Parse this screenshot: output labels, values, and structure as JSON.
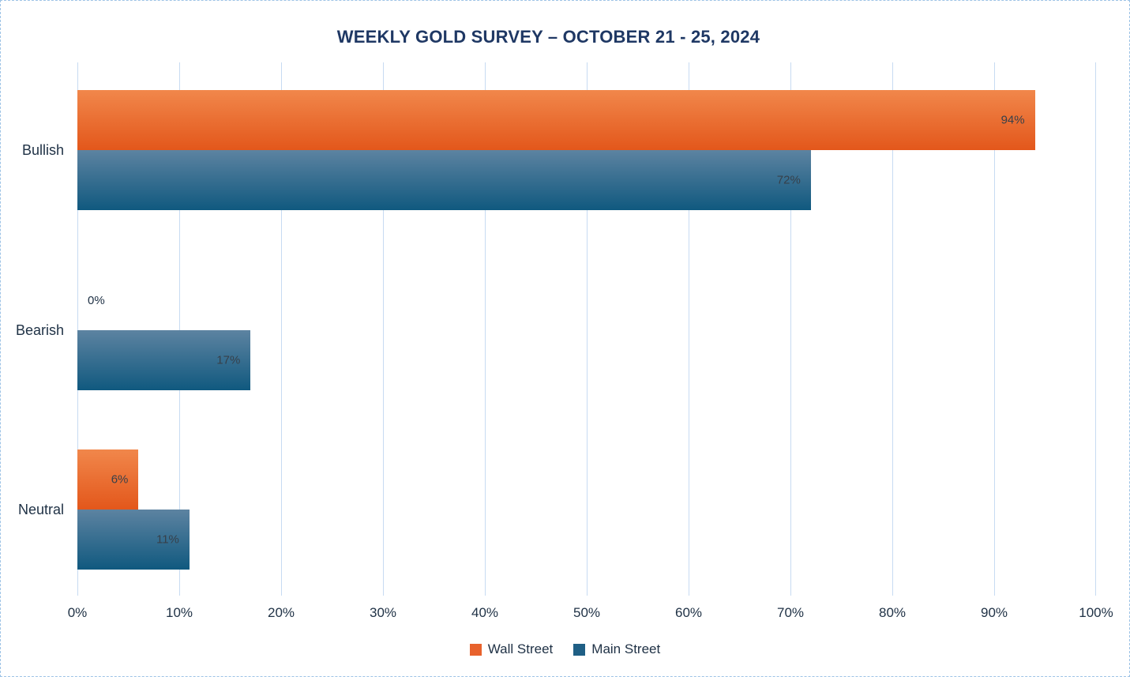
{
  "chart_data": {
    "type": "bar",
    "orientation": "horizontal",
    "title": "WEEKLY GOLD SURVEY – OCTOBER 21 - 25, 2024",
    "categories": [
      "Bullish",
      "Bearish",
      "Neutral"
    ],
    "series": [
      {
        "name": "Wall Street",
        "values": [
          94,
          0,
          6
        ],
        "value_labels": [
          "94%",
          "0%",
          "6%"
        ],
        "color_top": "#F1874B",
        "color_bottom": "#E3571B",
        "legend_color": "#E8622C"
      },
      {
        "name": "Main Street",
        "values": [
          72,
          17,
          11
        ],
        "value_labels": [
          "72%",
          "17%",
          "11%"
        ],
        "color_top": "#5D83A1",
        "color_bottom": "#10597F",
        "legend_color": "#1F5F85"
      }
    ],
    "x_ticks": [
      "0%",
      "10%",
      "20%",
      "30%",
      "40%",
      "50%",
      "60%",
      "70%",
      "80%",
      "90%",
      "100%"
    ],
    "xlim": [
      0,
      100
    ],
    "xlabel": "",
    "ylabel": "",
    "grid": "vertical",
    "legend_position": "bottom"
  },
  "colors": {
    "background": "#FFFFFF",
    "border": "#9DC3E6",
    "gridline": "#C7DBF2",
    "title_text": "#1F3864",
    "axis_text": "#203246",
    "data_label_text": "#37404A"
  }
}
